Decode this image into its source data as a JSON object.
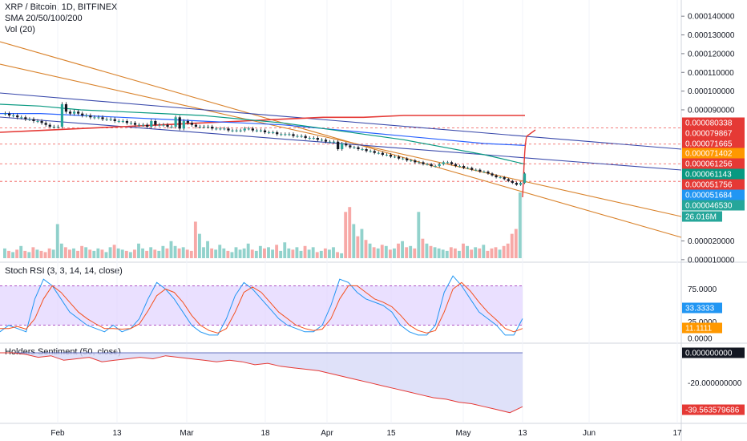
{
  "header": {
    "title": "XRP / Bitcoin, 1D, BITFINEX",
    "indicator_sma": "SMA 20/50/100/200",
    "indicator_vol": "Vol (20)"
  },
  "panels": {
    "stoch_rsi_title": "Stoch RSI (3, 3, 14, 14, close)",
    "holders_title": "Holders Sentiment (50, close)"
  },
  "colors": {
    "up": "#26a69a",
    "down": "#ef5350",
    "sma20": "#2962ff",
    "sma50": "#089981",
    "sma200": "#e53935",
    "trend": "#d9822b",
    "channel": "#3949ab",
    "rsi_k": "#2196f3",
    "rsi_d": "#f4511e",
    "sentiment": "#e53935",
    "band_fill": "#e1d3ff"
  },
  "price_axis": {
    "ticks": [
      "0.000140000",
      "0.000130000",
      "0.000120000",
      "0.000110000",
      "0.000100000",
      "0.000090000",
      "0.000020000",
      "0.000010000"
    ],
    "tags": [
      {
        "text": "0.000080338",
        "color": "#e53935"
      },
      {
        "text": "0.000079867",
        "color": "#e53935"
      },
      {
        "text": "0.000071665",
        "color": "#e53935"
      },
      {
        "text": "0.000071402",
        "color": "#ff9800"
      },
      {
        "text": "0.000061256",
        "color": "#e53935"
      },
      {
        "text": "0.000061143",
        "color": "#089981"
      },
      {
        "text": "0.000051756",
        "color": "#e53935"
      },
      {
        "text": "0.000051684",
        "color": "#2196f3"
      },
      {
        "text": "0.000046530",
        "color": "#26a69a"
      },
      {
        "text": "26.016M",
        "color": "#26a69a"
      }
    ]
  },
  "stoch_axis": {
    "ticks": [
      "75.0000",
      "25.0000",
      "0.0000"
    ],
    "tags": [
      {
        "text": "33.3333",
        "color": "#2196f3"
      },
      {
        "text": "11.1111",
        "color": "#ff9800"
      }
    ]
  },
  "holders_axis": {
    "ticks": [
      "-20.000000000"
    ],
    "tags": [
      {
        "text": "0.000000000",
        "color": "#131722"
      },
      {
        "text": "-39.563579686",
        "color": "#e53935"
      }
    ]
  },
  "time_axis": {
    "labels": [
      "Feb",
      "13",
      "Mar",
      "18",
      "Apr",
      "15",
      "May",
      "13",
      "Jun",
      "17"
    ]
  },
  "chart_data": {
    "type": "candlestick",
    "symbol": "XRP / Bitcoin",
    "interval": "1D",
    "exchange": "BITFINEX",
    "price_range": [
      9.5e-06,
      0.0001465
    ],
    "close_series_approx": [
      8.8e-05,
      8.7e-05,
      8.7e-05,
      8.6e-05,
      8.6e-05,
      8.5e-05,
      8.5e-05,
      8.4e-05,
      8.4e-05,
      8.3e-05,
      8.2e-05,
      8.1e-05,
      8.1e-05,
      8.1e-05,
      9.3e-05,
      8.9e-05,
      8.8e-05,
      8.9e-05,
      8.8e-05,
      8.7e-05,
      8.7e-05,
      8.6e-05,
      8.6e-05,
      8.6e-05,
      8.5e-05,
      8.5e-05,
      8.5e-05,
      8.4e-05,
      8.4e-05,
      8.4e-05,
      8.3e-05,
      8.3e-05,
      8.2e-05,
      8.2e-05,
      8.2e-05,
      8.1e-05,
      8.4e-05,
      8.2e-05,
      8.2e-05,
      8.2e-05,
      8.1e-05,
      8.1e-05,
      8.6e-05,
      8e-05,
      8.4e-05,
      8.3e-05,
      8.2e-05,
      8.1e-05,
      8.1e-05,
      8.1e-05,
      8.1e-05,
      8e-05,
      8e-05,
      8e-05,
      8e-05,
      7.9e-05,
      7.9e-05,
      7.9e-05,
      7.9e-05,
      8e-05,
      8e-05,
      7.9e-05,
      7.9e-05,
      7.9e-05,
      7.8e-05,
      7.8e-05,
      7.8e-05,
      7.7e-05,
      7.7e-05,
      7.7e-05,
      7.7e-05,
      7.6e-05,
      7.6e-05,
      7.6e-05,
      7.5e-05,
      7.5e-05,
      7.5e-05,
      7.4e-05,
      7.4e-05,
      7.3e-05,
      7.3e-05,
      7.3e-05,
      6.9e-05,
      7.2e-05,
      7.1e-05,
      7e-05,
      7e-05,
      6.9e-05,
      6.9e-05,
      6.8e-05,
      6.8e-05,
      6.7e-05,
      6.7e-05,
      6.6e-05,
      6.6e-05,
      6.5e-05,
      6.5e-05,
      6.4e-05,
      6.4e-05,
      6.3e-05,
      6.3e-05,
      6.2e-05,
      6.2e-05,
      6.1e-05,
      6.1e-05,
      6e-05,
      6e-05,
      6.1e-05,
      6.2e-05,
      6.2e-05,
      6.1e-05,
      6e-05,
      6e-05,
      5.9e-05,
      5.9e-05,
      5.8e-05,
      5.8e-05,
      5.7e-05,
      5.7e-05,
      5.6e-05,
      5.5e-05,
      5.4e-05,
      5.4e-05,
      5.3e-05,
      5.2e-05,
      5.1e-05,
      5e-05,
      5.1e-05,
      5.6e-05
    ],
    "volume_series_approx": [
      8,
      6,
      5,
      7,
      10,
      6,
      5,
      9,
      7,
      6,
      5,
      8,
      7,
      28,
      12,
      9,
      7,
      8,
      6,
      10,
      9,
      7,
      6,
      8,
      7,
      5,
      9,
      11,
      8,
      7,
      6,
      5,
      7,
      12,
      8,
      6,
      9,
      7,
      6,
      10,
      8,
      14,
      10,
      8,
      9,
      7,
      6,
      30,
      20,
      9,
      14,
      8,
      7,
      11,
      8,
      6,
      5,
      9,
      7,
      8,
      12,
      7,
      6,
      10,
      8,
      9,
      7,
      11,
      6,
      13,
      8,
      7,
      9,
      6,
      10,
      7,
      9,
      5,
      6,
      8,
      7,
      9,
      5,
      4,
      38,
      42,
      28,
      18,
      24,
      15,
      12,
      9,
      8,
      11,
      10,
      7,
      8,
      12,
      14,
      9,
      10,
      8,
      38,
      16,
      12,
      10,
      9,
      8,
      7,
      6,
      9,
      8,
      6,
      12,
      10,
      7,
      9,
      8,
      11,
      6,
      8,
      9,
      7,
      10,
      12,
      20,
      24,
      54
    ],
    "stoch_rsi_k_approx": [
      10,
      20,
      15,
      10,
      60,
      90,
      80,
      60,
      40,
      30,
      20,
      15,
      10,
      20,
      10,
      15,
      30,
      60,
      85,
      75,
      60,
      40,
      20,
      10,
      5,
      5,
      30,
      65,
      85,
      75,
      60,
      45,
      30,
      20,
      15,
      10,
      10,
      20,
      50,
      90,
      85,
      70,
      60,
      55,
      50,
      40,
      20,
      10,
      5,
      5,
      20,
      70,
      95,
      80,
      60,
      40,
      30,
      20,
      5,
      5,
      30
    ],
    "stoch_rsi_d_approx": [
      15,
      15,
      18,
      14,
      30,
      60,
      80,
      70,
      55,
      40,
      30,
      22,
      15,
      15,
      14,
      15,
      22,
      42,
      65,
      75,
      70,
      55,
      35,
      20,
      12,
      8,
      15,
      40,
      70,
      78,
      70,
      55,
      40,
      30,
      20,
      15,
      12,
      14,
      30,
      60,
      80,
      80,
      70,
      60,
      55,
      48,
      35,
      20,
      12,
      8,
      12,
      40,
      75,
      85,
      72,
      55,
      40,
      28,
      15,
      10,
      15
    ],
    "holders_sentiment_approx": [
      0,
      0,
      -1,
      -3,
      -2,
      -5,
      -4,
      -3,
      -6,
      -5,
      -4,
      -3,
      -4,
      -2,
      -3,
      -4,
      -5,
      -6,
      -5,
      -6,
      -8,
      -7,
      -9,
      -10,
      -11,
      -12,
      -14,
      -16,
      -18,
      -20,
      -22,
      -24,
      -26,
      -28,
      -30,
      -31,
      -33,
      -34,
      -36,
      -38,
      -40,
      -36
    ],
    "sma200_approx": [
      7.8e-05,
      7.9e-05,
      8e-05,
      8.1e-05,
      8.2e-05,
      8.3e-05,
      8.4e-05,
      8.5e-05,
      8.6e-05,
      8.6e-05,
      8.7e-05,
      8.7e-05,
      8.7e-05,
      8.7e-05
    ],
    "sma100_approx": [
      8.8e-05,
      8.8e-05,
      8.7e-05,
      8.6e-05,
      8.5e-05,
      8.4e-05,
      8.3e-05,
      8.2e-05,
      8e-05,
      7.8e-05,
      7.6e-05,
      7.4e-05,
      7.2e-05,
      7.1e-05
    ],
    "sma50_approx": [
      9.3e-05,
      9.2e-05,
      9e-05,
      8.9e-05,
      8.8e-05,
      8.7e-05,
      8.5e-05,
      8.3e-05,
      8e-05,
      7.7e-05,
      7.4e-05,
      7e-05,
      6.6e-05,
      6.1e-05
    ]
  }
}
